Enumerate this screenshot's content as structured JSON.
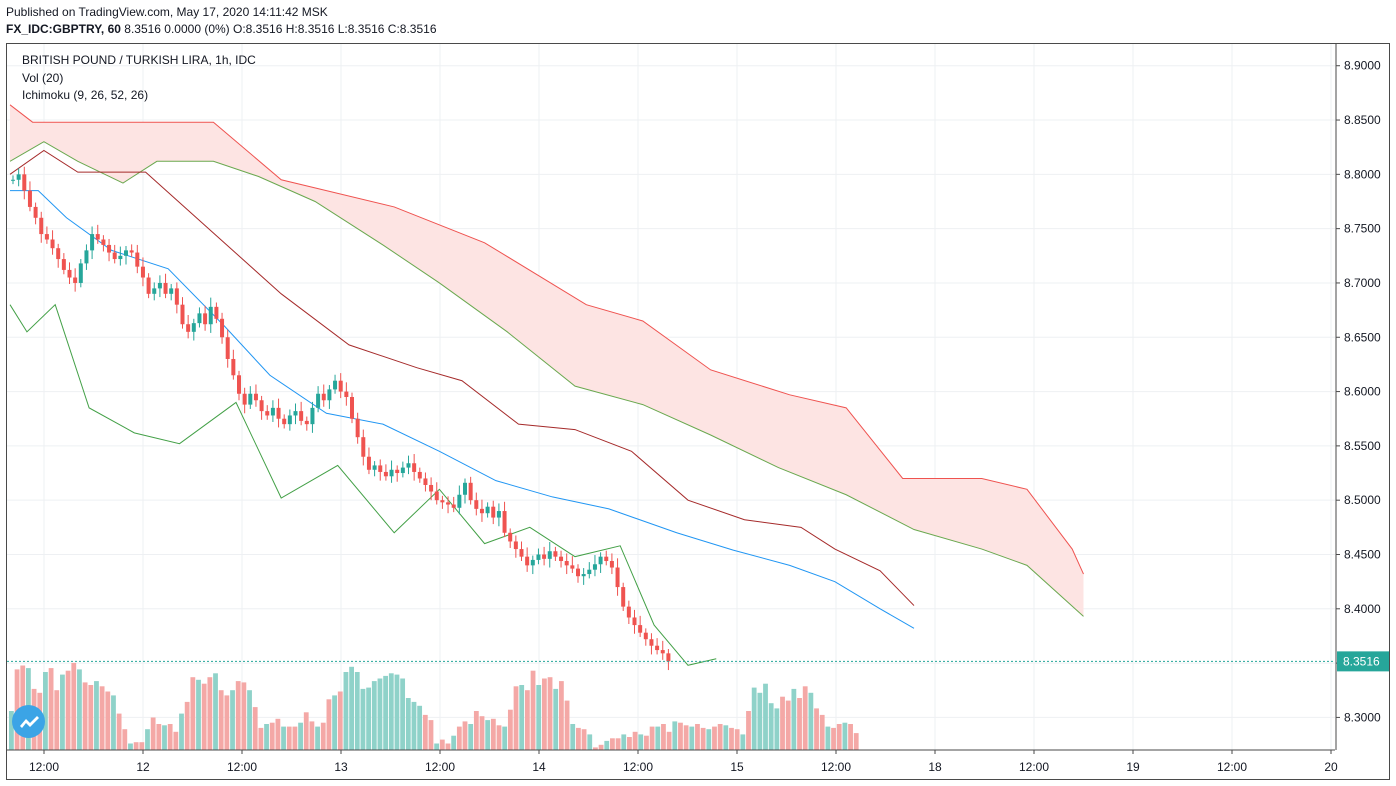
{
  "header": {
    "published": "Published on TradingView.com, May 17, 2020 14:11:42 MSK",
    "symbol": "FX_IDC:GBPTRY, 60",
    "quote": "8.3516 0.0000 (0%) O:8.3516 H:8.3516 L:8.3516 C:8.3516"
  },
  "legend": {
    "title": "BRITISH POUND / TURKISH LIRA, 1h, IDC",
    "vol": "Vol (20)",
    "ichimoku": "Ichimoku (9, 26, 52, 26)"
  },
  "price_label": "8.3516",
  "colors": {
    "up": "#26a69a",
    "down": "#ef5350",
    "up_vol": "#8fd2c9",
    "down_vol": "#f4a8a6",
    "tenkan": "#2196f3",
    "kijun": "#a52a2a",
    "lagging": "#43a047",
    "span_a": "#6aa84f",
    "span_b": "#ef5350",
    "cloud": "#fde4e3",
    "last_price": "#26a69a"
  },
  "chart_data": {
    "type": "candlestick",
    "ylim": [
      8.27,
      8.92
    ],
    "y_ticks": [
      "8.3000",
      "8.3500",
      "8.4000",
      "8.4500",
      "8.5000",
      "8.5500",
      "8.6000",
      "8.6500",
      "8.7000",
      "8.7500",
      "8.8000",
      "8.8500",
      "8.9000"
    ],
    "x_ticks": [
      "12:00",
      "12",
      "12:00",
      "13",
      "12:00",
      "14",
      "12:00",
      "15",
      "12:00",
      "18",
      "12:00",
      "19",
      "12:00",
      "20"
    ],
    "last_price": 8.3516,
    "close": [
      8.795,
      8.8,
      8.785,
      8.77,
      8.76,
      8.745,
      8.74,
      8.732,
      8.722,
      8.712,
      8.705,
      8.7,
      8.718,
      8.73,
      8.745,
      8.74,
      8.735,
      8.728,
      8.722,
      8.725,
      8.73,
      8.728,
      8.715,
      8.705,
      8.69,
      8.695,
      8.7,
      8.69,
      8.695,
      8.68,
      8.662,
      8.655,
      8.663,
      8.672,
      8.662,
      8.678,
      8.667,
      8.65,
      8.63,
      8.615,
      8.598,
      8.588,
      8.598,
      8.592,
      8.582,
      8.578,
      8.585,
      8.575,
      8.57,
      8.578,
      8.582,
      8.573,
      8.57,
      8.585,
      8.598,
      8.592,
      8.602,
      8.61,
      8.6,
      8.595,
      8.575,
      8.558,
      8.54,
      8.528,
      8.532,
      8.526,
      8.522,
      8.528,
      8.525,
      8.53,
      8.534,
      8.526,
      8.52,
      8.514,
      8.508,
      8.5,
      8.498,
      8.496,
      8.493,
      8.505,
      8.516,
      8.5,
      8.492,
      8.488,
      8.494,
      8.484,
      8.49,
      8.47,
      8.462,
      8.455,
      8.448,
      8.44,
      8.445,
      8.45,
      8.446,
      8.453,
      8.448,
      8.444,
      8.44,
      8.437,
      8.43,
      8.432,
      8.436,
      8.441,
      8.448,
      8.444,
      8.438,
      8.42,
      8.402,
      8.392,
      8.385,
      8.378,
      8.372,
      8.366,
      8.362,
      8.359,
      8.3516
    ],
    "volume_relative": [
      0.3,
      0.62,
      0.65,
      0.63,
      0.47,
      0.44,
      0.6,
      0.63,
      0.46,
      0.58,
      0.61,
      0.67,
      0.62,
      0.52,
      0.5,
      0.53,
      0.49,
      0.45,
      0.42,
      0.28,
      0.16,
      0.05,
      0.06,
      0.06,
      0.16,
      0.25,
      0.2,
      0.19,
      0.2,
      0.14,
      0.28,
      0.37,
      0.56,
      0.54,
      0.51,
      0.56,
      0.59,
      0.46,
      0.42,
      0.46,
      0.53,
      0.52,
      0.46,
      0.33,
      0.17,
      0.2,
      0.21,
      0.24,
      0.18,
      0.18,
      0.18,
      0.21,
      0.29,
      0.22,
      0.18,
      0.21,
      0.39,
      0.42,
      0.45,
      0.6,
      0.64,
      0.6,
      0.47,
      0.48,
      0.53,
      0.55,
      0.57,
      0.59,
      0.58,
      0.55,
      0.4,
      0.37,
      0.34,
      0.27,
      0.23,
      0.05,
      0.08,
      0.05,
      0.11,
      0.18,
      0.22,
      0.2,
      0.3,
      0.26,
      0.23,
      0.24,
      0.19,
      0.18,
      0.31,
      0.49,
      0.5,
      0.46,
      0.61,
      0.5,
      0.55,
      0.56,
      0.47,
      0.53,
      0.38,
      0.2,
      0.17,
      0.16,
      0.12,
      0.02,
      0.04,
      0.07,
      0.09,
      0.09,
      0.12,
      0.1,
      0.14,
      0.12,
      0.11,
      0.18,
      0.18,
      0.2,
      0.14,
      0.22,
      0.21,
      0.19,
      0.18,
      0.2,
      0.17,
      0.16,
      0.18,
      0.2,
      0.19,
      0.17,
      0.16,
      0.12,
      0.3,
      0.48,
      0.44,
      0.51,
      0.36,
      0.32,
      0.41,
      0.38,
      0.47,
      0.4,
      0.49,
      0.44,
      0.32,
      0.27,
      0.18,
      0.17,
      0.2,
      0.21,
      0.2,
      0.13
    ],
    "tenkan": [
      [
        0,
        8.785
      ],
      [
        5,
        8.785
      ],
      [
        10,
        8.76
      ],
      [
        18,
        8.73
      ],
      [
        28,
        8.713
      ],
      [
        38,
        8.66
      ],
      [
        46,
        8.615
      ],
      [
        56,
        8.58
      ],
      [
        66,
        8.57
      ],
      [
        76,
        8.545
      ],
      [
        86,
        8.518
      ],
      [
        96,
        8.503
      ],
      [
        106,
        8.492
      ],
      [
        118,
        8.47
      ],
      [
        128,
        8.454
      ],
      [
        138,
        8.44
      ],
      [
        146,
        8.425
      ],
      [
        154,
        8.4
      ],
      [
        160,
        8.382
      ]
    ],
    "kijun": [
      [
        0,
        8.8
      ],
      [
        6,
        8.822
      ],
      [
        12,
        8.802
      ],
      [
        24,
        8.802
      ],
      [
        36,
        8.746
      ],
      [
        48,
        8.69
      ],
      [
        60,
        8.643
      ],
      [
        72,
        8.622
      ],
      [
        80,
        8.61
      ],
      [
        90,
        8.57
      ],
      [
        100,
        8.565
      ],
      [
        110,
        8.545
      ],
      [
        120,
        8.5
      ],
      [
        130,
        8.482
      ],
      [
        140,
        8.475
      ],
      [
        146,
        8.455
      ],
      [
        154,
        8.435
      ],
      [
        160,
        8.403
      ]
    ],
    "lagging": [
      [
        0,
        8.68
      ],
      [
        3,
        8.655
      ],
      [
        8,
        8.68
      ],
      [
        14,
        8.585
      ],
      [
        22,
        8.562
      ],
      [
        30,
        8.552
      ],
      [
        40,
        8.59
      ],
      [
        48,
        8.502
      ],
      [
        58,
        8.532
      ],
      [
        68,
        8.47
      ],
      [
        76,
        8.51
      ],
      [
        84,
        8.46
      ],
      [
        92,
        8.475
      ],
      [
        100,
        8.448
      ],
      [
        108,
        8.458
      ],
      [
        114,
        8.385
      ],
      [
        120,
        8.348
      ],
      [
        125,
        8.354
      ]
    ],
    "span_a": [
      [
        0,
        8.812
      ],
      [
        6,
        8.83
      ],
      [
        12,
        8.812
      ],
      [
        20,
        8.792
      ],
      [
        26,
        8.812
      ],
      [
        36,
        8.812
      ],
      [
        44,
        8.798
      ],
      [
        54,
        8.775
      ],
      [
        66,
        8.735
      ],
      [
        76,
        8.7
      ],
      [
        88,
        8.655
      ],
      [
        100,
        8.605
      ],
      [
        112,
        8.588
      ],
      [
        124,
        8.56
      ],
      [
        136,
        8.53
      ],
      [
        148,
        8.505
      ],
      [
        160,
        8.473
      ],
      [
        172,
        8.455
      ],
      [
        180,
        8.44
      ],
      [
        190,
        8.393
      ]
    ],
    "span_b": [
      [
        0,
        8.864
      ],
      [
        4,
        8.848
      ],
      [
        36,
        8.848
      ],
      [
        48,
        8.795
      ],
      [
        68,
        8.77
      ],
      [
        84,
        8.737
      ],
      [
        102,
        8.68
      ],
      [
        112,
        8.665
      ],
      [
        124,
        8.62
      ],
      [
        138,
        8.597
      ],
      [
        148,
        8.585
      ],
      [
        158,
        8.52
      ],
      [
        172,
        8.52
      ],
      [
        180,
        8.51
      ],
      [
        188,
        8.455
      ],
      [
        190,
        8.432
      ]
    ]
  }
}
